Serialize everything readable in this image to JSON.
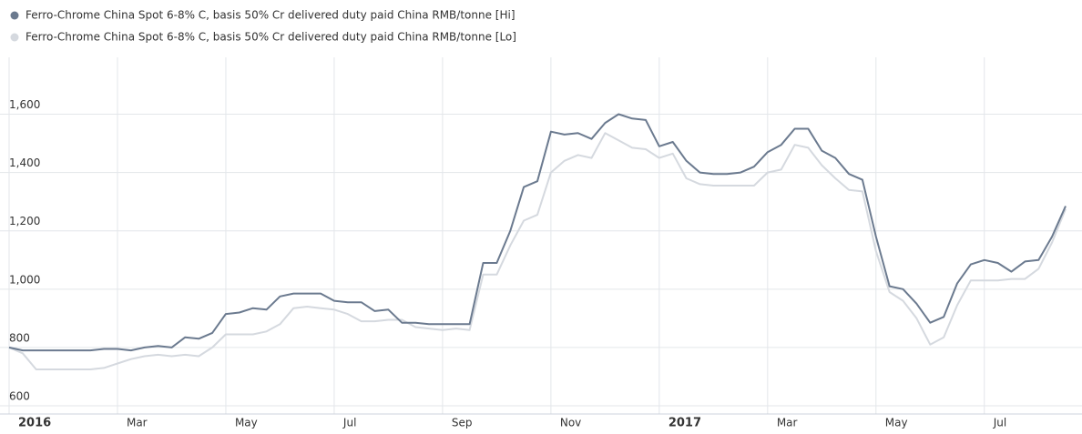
{
  "chart_data": {
    "type": "line",
    "categories": [
      "2016",
      null,
      null,
      null,
      null,
      null,
      null,
      null,
      "Mar",
      null,
      null,
      null,
      null,
      null,
      null,
      null,
      "May",
      null,
      null,
      null,
      null,
      null,
      null,
      null,
      "Jul",
      null,
      null,
      null,
      null,
      null,
      null,
      null,
      "Sep",
      null,
      null,
      null,
      null,
      null,
      null,
      null,
      "Nov",
      null,
      null,
      null,
      null,
      null,
      null,
      null,
      "2017",
      null,
      null,
      null,
      null,
      null,
      null,
      null,
      "Mar",
      null,
      null,
      null,
      null,
      null,
      null,
      null,
      "May",
      null,
      null,
      null,
      null,
      null,
      null,
      null,
      "Jul",
      null,
      null,
      null,
      null,
      null,
      null
    ],
    "series": [
      {
        "name": "Ferro-Chrome China Spot 6-8% C, basis 50% Cr delivered duty paid China RMB/tonne [Hi]",
        "color": "#6b7a8f",
        "values": [
          800,
          790,
          790,
          790,
          790,
          790,
          790,
          795,
          795,
          790,
          800,
          805,
          800,
          835,
          830,
          850,
          915,
          920,
          935,
          930,
          975,
          985,
          985,
          985,
          960,
          955,
          955,
          925,
          930,
          885,
          885,
          880,
          880,
          880,
          880,
          1090,
          1090,
          1200,
          1350,
          1370,
          1540,
          1530,
          1535,
          1515,
          1570,
          1600,
          1585,
          1580,
          1490,
          1505,
          1440,
          1400,
          1395,
          1395,
          1400,
          1420,
          1470,
          1495,
          1550,
          1550,
          1475,
          1450,
          1395,
          1375,
          1180,
          1010,
          1000,
          950,
          885,
          905,
          1020,
          1085,
          1100,
          1090,
          1060,
          1095,
          1100,
          1180,
          1285
        ]
      },
      {
        "name": "Ferro-Chrome China Spot 6-8% C, basis 50% Cr delivered duty paid China RMB/tonne [Lo]",
        "color": "#d5d9df",
        "values": [
          800,
          780,
          725,
          725,
          725,
          725,
          725,
          730,
          745,
          760,
          770,
          775,
          770,
          775,
          770,
          800,
          845,
          845,
          845,
          855,
          880,
          935,
          940,
          935,
          930,
          915,
          890,
          890,
          895,
          895,
          870,
          865,
          860,
          865,
          860,
          1050,
          1050,
          1150,
          1235,
          1255,
          1400,
          1440,
          1460,
          1450,
          1535,
          1510,
          1485,
          1480,
          1450,
          1465,
          1380,
          1360,
          1355,
          1355,
          1355,
          1355,
          1400,
          1410,
          1495,
          1485,
          1425,
          1380,
          1340,
          1335,
          1130,
          990,
          960,
          900,
          810,
          835,
          945,
          1030,
          1030,
          1030,
          1035,
          1035,
          1070,
          1160,
          1275
        ]
      }
    ],
    "ylim": [
      572,
      1795
    ],
    "yticks": [
      600,
      800,
      {
        "value": 1000,
        "label": "1,000"
      },
      {
        "value": 1200,
        "label": "1,200"
      },
      {
        "value": 1400,
        "label": "1,400"
      },
      {
        "value": 1600,
        "label": "1,600"
      }
    ],
    "grid": true
  }
}
